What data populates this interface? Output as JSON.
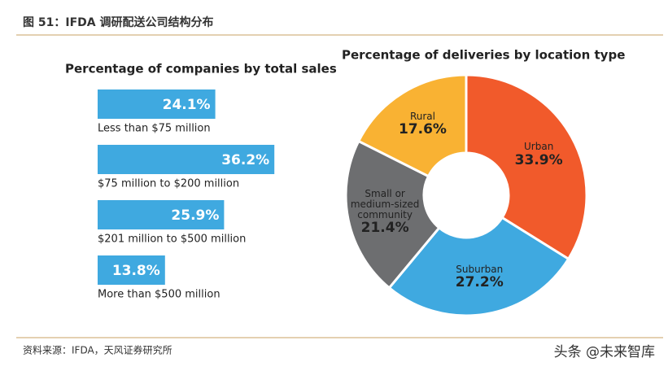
{
  "header": {
    "title": "图 51：IFDA 调研配送公司结构分布"
  },
  "chart_data": [
    {
      "type": "bar",
      "orientation": "horizontal",
      "title": "Percentage of companies by total sales",
      "categories": [
        "Less than $75 million",
        "$75 million to $200 million",
        "$201 million to $500 million",
        "More than $500 million"
      ],
      "values": [
        24.1,
        36.2,
        25.9,
        13.8
      ],
      "value_labels": [
        "24.1%",
        "36.2%",
        "25.9%",
        "13.8%"
      ],
      "color": "#3fa9e0"
    },
    {
      "type": "pie",
      "donut": true,
      "title": "Percentage of deliveries by location type",
      "categories": [
        "Urban",
        "Suburban",
        "Small or medium-sized community",
        "Rural"
      ],
      "values": [
        33.9,
        27.2,
        21.4,
        17.6
      ],
      "value_labels": [
        "33.9%",
        "27.2%",
        "21.4%",
        "17.6%"
      ],
      "colors": [
        "#f15a2b",
        "#3fa9e0",
        "#6d6e70",
        "#f9b233"
      ]
    }
  ],
  "footer": {
    "source": "资料来源：IFDA，天风证券研究所",
    "watermark": "头条 @未来智库"
  }
}
